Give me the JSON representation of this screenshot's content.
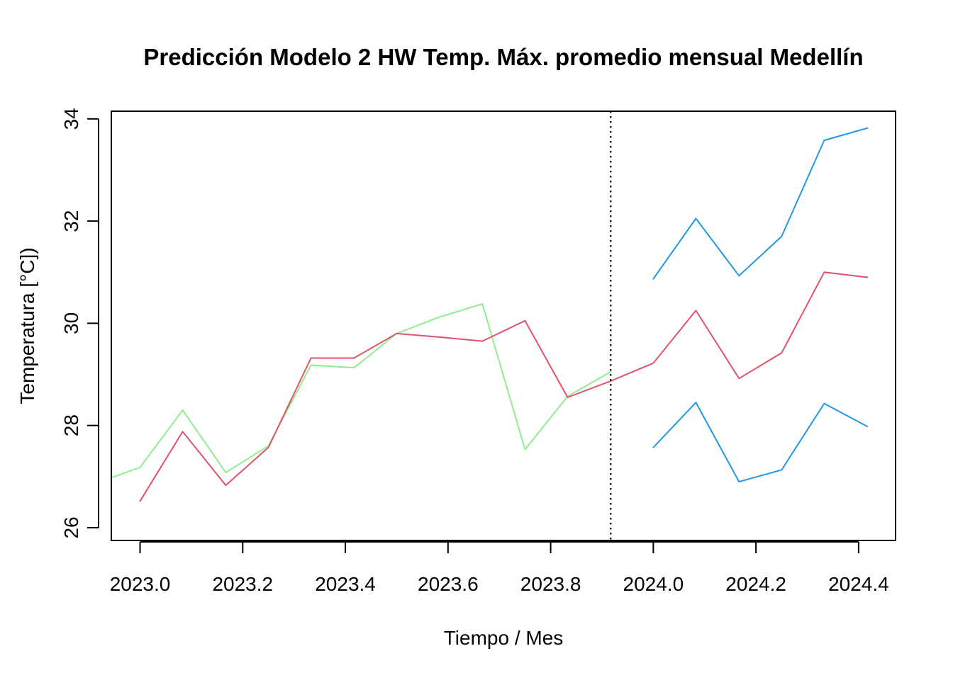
{
  "chart_data": {
    "type": "line",
    "title": "Predicción Modelo 2 HW Temp. Máx. promedio mensual Medellín",
    "xlabel": "Tiempo / Mes",
    "ylabel": "Temperatura [°C])",
    "xlim": [
      2022.944,
      2024.472
    ],
    "ylim": [
      25.75,
      34.15
    ],
    "xticks": [
      2023.0,
      2023.2,
      2023.4,
      2023.6,
      2023.8,
      2024.0,
      2024.2,
      2024.4
    ],
    "xtick_labels": [
      "2023.0",
      "2023.2",
      "2023.4",
      "2023.6",
      "2023.8",
      "2024.0",
      "2024.2",
      "2024.4"
    ],
    "yticks": [
      26,
      28,
      30,
      32,
      34
    ],
    "ytick_labels": [
      "26",
      "28",
      "30",
      "32",
      "34"
    ],
    "vline_x": 2023.917,
    "grid": false,
    "series": [
      {
        "color": "#90EE90",
        "x": [
          2022.917,
          2023.0,
          2023.083,
          2023.167,
          2023.25,
          2023.333,
          2023.417,
          2023.5,
          2023.583,
          2023.667,
          2023.75,
          2023.833,
          2023.917
        ],
        "values": [
          26.88,
          27.18,
          28.3,
          27.08,
          27.6,
          29.18,
          29.13,
          29.8,
          30.12,
          30.38,
          27.53,
          28.57,
          29.05
        ]
      },
      {
        "color": "#DF536B",
        "x": [
          2023.0,
          2023.083,
          2023.167,
          2023.25,
          2023.333,
          2023.417,
          2023.5,
          2023.583,
          2023.667,
          2023.75,
          2023.833,
          2023.917,
          2024.0,
          2024.083,
          2024.167,
          2024.25,
          2024.333,
          2024.417
        ],
        "values": [
          26.52,
          27.88,
          26.83,
          27.57,
          29.32,
          29.32,
          29.8,
          29.73,
          29.65,
          30.05,
          28.55,
          28.87,
          29.22,
          30.25,
          28.92,
          29.42,
          31.0,
          30.9
        ]
      },
      {
        "color": "#2297E6",
        "x": [
          2024.0,
          2024.083,
          2024.167,
          2024.25,
          2024.333,
          2024.417
        ],
        "values": [
          30.87,
          32.05,
          30.93,
          31.7,
          33.58,
          33.82
        ]
      },
      {
        "color": "#2297E6",
        "x": [
          2024.0,
          2024.083,
          2024.167,
          2024.25,
          2024.333,
          2024.417
        ],
        "values": [
          27.57,
          28.45,
          26.9,
          27.13,
          28.43,
          27.98
        ]
      }
    ]
  }
}
